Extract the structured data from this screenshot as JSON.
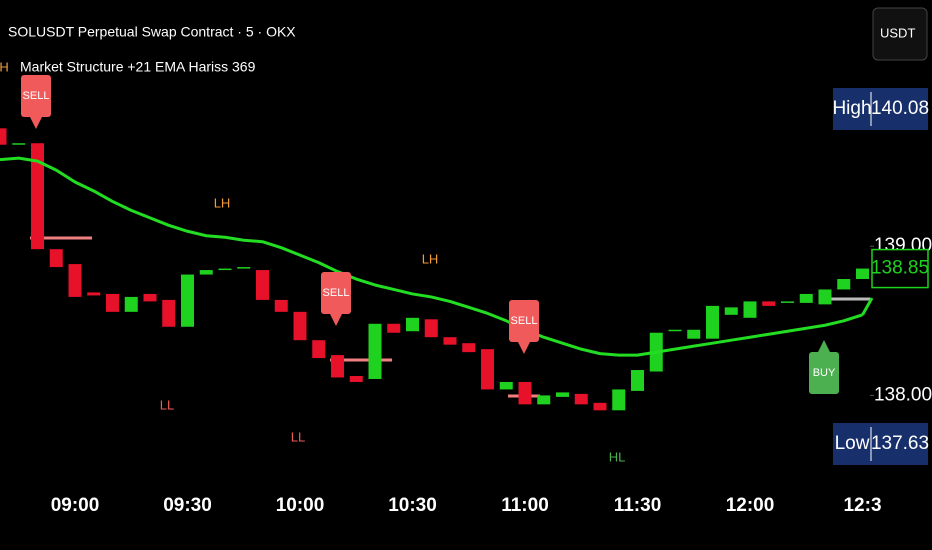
{
  "chart_data": {
    "type": "candlestick",
    "title": "SOLUSDT Perpetual Swap Contract · 5 · OKX",
    "subtitle": "Market Structure +21 EMA Hariss 369",
    "currency_button": "USDT",
    "categories": [
      null,
      null,
      null,
      null,
      "09:00",
      null,
      null,
      null,
      null,
      null,
      "09:30",
      null,
      null,
      null,
      null,
      null,
      "10:00",
      null,
      null,
      null,
      null,
      null,
      "10:30",
      null,
      null,
      null,
      null,
      null,
      "11:00",
      null,
      null,
      null,
      null,
      null,
      "11:30",
      null,
      null,
      null,
      null,
      null,
      "12:00",
      null,
      null,
      null,
      null,
      null,
      "12:3"
    ],
    "open": [
      139.79,
      139.68,
      139.69,
      138.98,
      138.88,
      138.69,
      138.68,
      138.56,
      138.68,
      138.64,
      138.46,
      138.81,
      138.84,
      138.85,
      138.84,
      138.64,
      138.56,
      138.37,
      138.27,
      138.13,
      138.11,
      138.48,
      138.43,
      138.51,
      138.39,
      138.35,
      138.31,
      138.04,
      138.09,
      137.94,
      137.99,
      138.01,
      137.95,
      137.9,
      138.03,
      138.16,
      138.43,
      138.38,
      138.38,
      138.54,
      138.52,
      138.63,
      138.62,
      138.62,
      138.61,
      138.71,
      138.78
    ],
    "high": {
      "label": "High",
      "value": 140.08
    },
    "low": {
      "label": "Low",
      "value": 137.63
    },
    "close": [
      139.68,
      139.69,
      138.98,
      138.86,
      138.66,
      138.67,
      138.56,
      138.66,
      138.63,
      138.46,
      138.81,
      138.84,
      138.85,
      138.86,
      138.64,
      138.56,
      138.37,
      138.25,
      138.12,
      138.09,
      138.48,
      138.42,
      138.52,
      138.39,
      138.34,
      138.29,
      138.04,
      138.09,
      137.94,
      138.0,
      138.02,
      137.94,
      137.9,
      138.04,
      138.17,
      138.42,
      138.44,
      138.44,
      138.6,
      138.59,
      138.63,
      138.6,
      138.63,
      138.68,
      138.71,
      138.78,
      138.85
    ],
    "up_color": "#1fd21f",
    "down_color": "#e8112a",
    "ema": {
      "color": "#22dd22",
      "values": [
        139.58,
        139.59,
        139.57,
        139.51,
        139.43,
        139.37,
        139.3,
        139.24,
        139.19,
        139.14,
        139.1,
        139.07,
        139.06,
        139.04,
        139.03,
        138.99,
        138.94,
        138.89,
        138.83,
        138.78,
        138.74,
        138.71,
        138.68,
        138.66,
        138.63,
        138.59,
        138.55,
        138.5,
        138.44,
        138.39,
        138.35,
        138.31,
        138.28,
        138.27,
        138.27,
        138.29,
        138.31,
        138.33,
        138.35,
        138.37,
        138.39,
        138.41,
        138.43,
        138.45,
        138.47,
        138.5,
        138.54
      ]
    },
    "ylim": [
      137.5,
      140.65
    ],
    "yticks": [
      {
        "value": 138,
        "label": "138.00"
      },
      {
        "value": 139,
        "label": "139.00"
      }
    ],
    "last_price": 138.85,
    "signals": [
      "SELL",
      "SELL",
      "SELL",
      "BUY"
    ],
    "structure_labels": [
      "H",
      "LH",
      "LL",
      "LL",
      "LH",
      "HL"
    ]
  }
}
